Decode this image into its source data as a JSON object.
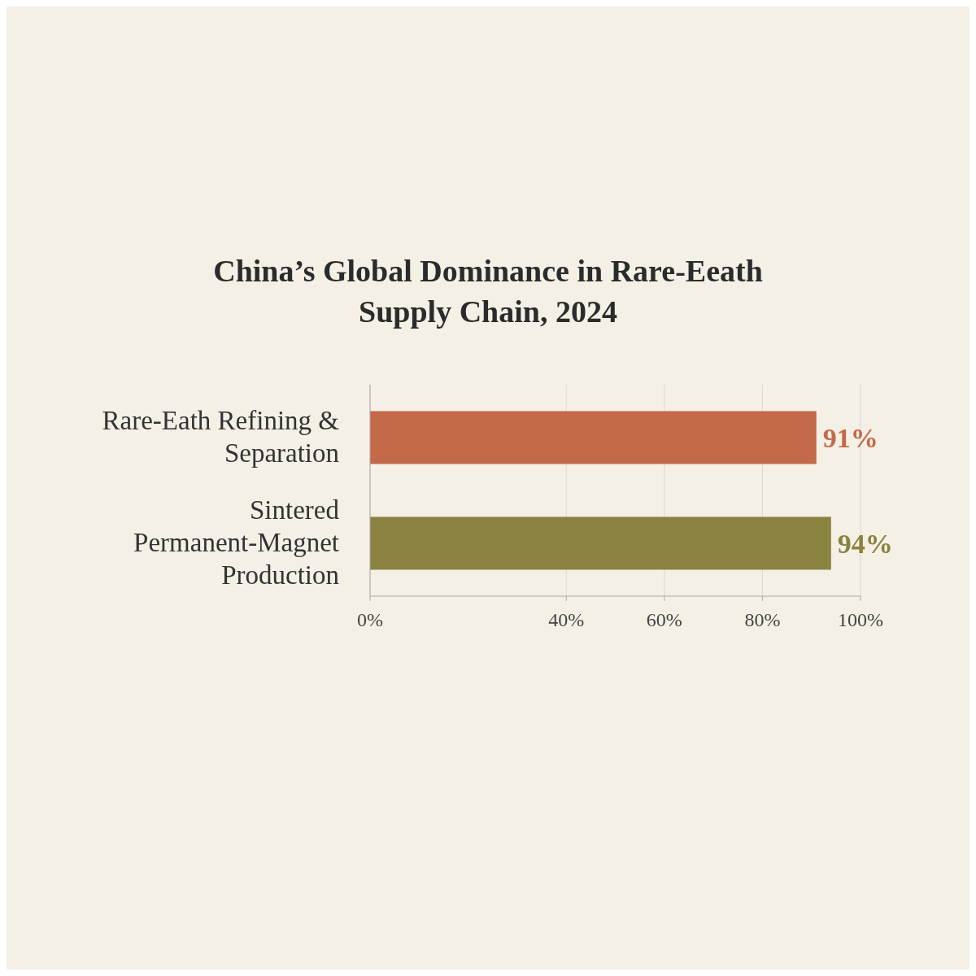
{
  "chart_data": {
    "type": "bar",
    "orientation": "horizontal",
    "title": "China’s Global Dominance in Rare-Eeath Supply Chain, 2024",
    "categories": [
      "Rare-Eath Refining & Separation",
      "Sintered Permanent-Magnet Production"
    ],
    "values": [
      91,
      94
    ],
    "colors": [
      "#c4694a",
      "#8a8240"
    ],
    "value_labels": [
      "91%",
      "94%"
    ],
    "xlim": [
      0,
      100
    ],
    "xticks": [
      {
        "value": 0,
        "label": "0%"
      },
      {
        "value": 40,
        "label": "40%"
      },
      {
        "value": 60,
        "label": "60%"
      },
      {
        "value": 80,
        "label": "80%"
      },
      {
        "value": 100,
        "label": "100%"
      }
    ],
    "grid": "x"
  }
}
